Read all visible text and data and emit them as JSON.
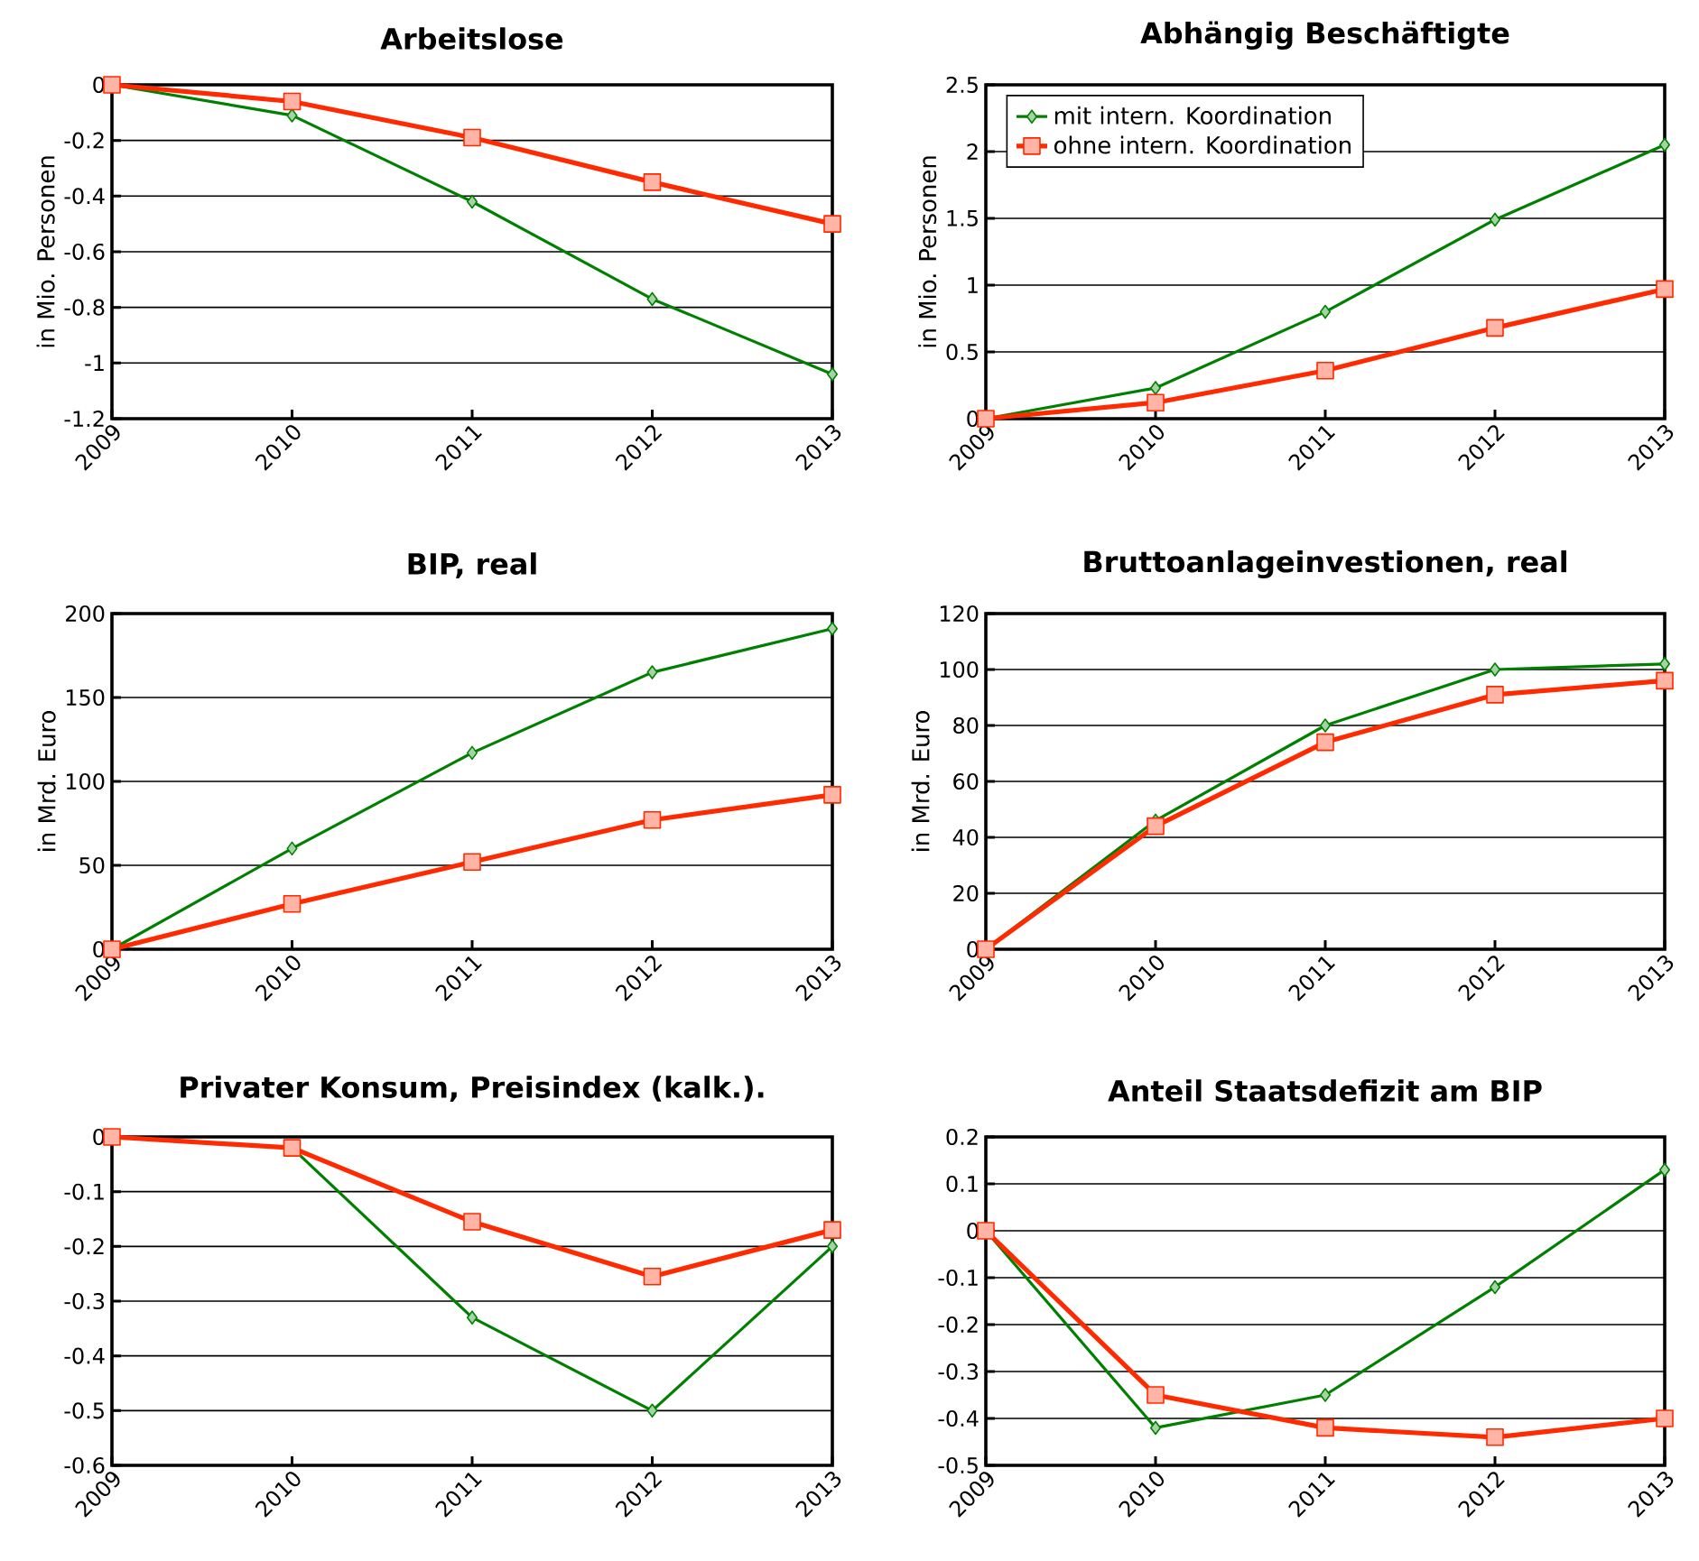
{
  "chart_data": [
    {
      "type": "line",
      "title": "Arbeitslose",
      "ylabel": "in Mio. Personen",
      "categories": [
        "2009",
        "2010",
        "2011",
        "2012",
        "2013"
      ],
      "ylim": [
        -1.2,
        0
      ],
      "yticks": [
        -1.2,
        -1,
        -0.8,
        -0.6,
        -0.4,
        -0.2,
        0
      ],
      "grid": "y",
      "legend": false,
      "series": [
        {
          "color": "#008000",
          "marker": "diamond",
          "values": [
            0,
            -0.11,
            -0.42,
            -0.77,
            -1.04
          ]
        },
        {
          "color": "#ff2a00",
          "marker": "square",
          "values": [
            0,
            -0.06,
            -0.19,
            -0.35,
            -0.5
          ]
        }
      ]
    },
    {
      "type": "line",
      "title": "Abhängig Beschäftigte",
      "ylabel": "in Mio. Personen",
      "categories": [
        "2009",
        "2010",
        "2011",
        "2012",
        "2013"
      ],
      "ylim": [
        0,
        2.5
      ],
      "yticks": [
        0,
        0.5,
        1,
        1.5,
        2,
        2.5
      ],
      "grid": "y",
      "legend": "top left",
      "series": [
        {
          "name": "mit intern. Koordination",
          "color": "#008000",
          "marker": "diamond",
          "values": [
            0,
            0.23,
            0.8,
            1.49,
            2.05
          ]
        },
        {
          "name": "ohne intern. Koordination",
          "color": "#ff2a00",
          "marker": "square",
          "values": [
            0,
            0.12,
            0.36,
            0.68,
            0.97
          ]
        }
      ]
    },
    {
      "type": "line",
      "title": "BIP, real",
      "ylabel": "in Mrd. Euro",
      "categories": [
        "2009",
        "2010",
        "2011",
        "2012",
        "2013"
      ],
      "ylim": [
        0,
        200
      ],
      "yticks": [
        0,
        50,
        100,
        150,
        200
      ],
      "grid": "y",
      "legend": false,
      "series": [
        {
          "color": "#008000",
          "marker": "diamond",
          "values": [
            0,
            60,
            117,
            165,
            191
          ]
        },
        {
          "color": "#ff2a00",
          "marker": "square",
          "values": [
            0,
            27,
            52,
            77,
            92
          ]
        }
      ]
    },
    {
      "type": "line",
      "title": "Bruttoanlageinvestionen, real",
      "ylabel": "in Mrd. Euro",
      "categories": [
        "2009",
        "2010",
        "2011",
        "2012",
        "2013"
      ],
      "ylim": [
        0,
        120
      ],
      "yticks": [
        0,
        20,
        40,
        60,
        80,
        100,
        120
      ],
      "grid": "y",
      "legend": false,
      "series": [
        {
          "color": "#008000",
          "marker": "diamond",
          "values": [
            0,
            46,
            80,
            100,
            102
          ]
        },
        {
          "color": "#ff2a00",
          "marker": "square",
          "values": [
            0,
            44,
            74,
            91,
            96
          ]
        }
      ]
    },
    {
      "type": "line",
      "title": "Privater Konsum, Preisindex (kalk.).",
      "categories": [
        "2009",
        "2010",
        "2011",
        "2012",
        "2013"
      ],
      "ylim": [
        -0.6,
        0
      ],
      "yticks": [
        -0.6,
        -0.5,
        -0.4,
        -0.3,
        -0.2,
        -0.1,
        0
      ],
      "grid": "y",
      "legend": false,
      "series": [
        {
          "color": "#008000",
          "marker": "diamond",
          "values": [
            0,
            -0.02,
            -0.33,
            -0.5,
            -0.2
          ]
        },
        {
          "color": "#ff2a00",
          "marker": "square",
          "values": [
            0,
            -0.02,
            -0.155,
            -0.255,
            -0.17
          ]
        }
      ]
    },
    {
      "type": "line",
      "title": "Anteil Staatsdefizit am BIP",
      "categories": [
        "2009",
        "2010",
        "2011",
        "2012",
        "2013"
      ],
      "ylim": [
        -0.5,
        0.2
      ],
      "yticks": [
        -0.5,
        -0.4,
        -0.3,
        -0.2,
        -0.1,
        0,
        0.1,
        0.2
      ],
      "grid": "y",
      "legend": false,
      "series": [
        {
          "color": "#008000",
          "marker": "diamond",
          "values": [
            0,
            -0.42,
            -0.35,
            -0.12,
            0.13
          ]
        },
        {
          "color": "#ff2a00",
          "marker": "square",
          "values": [
            0,
            -0.35,
            -0.42,
            -0.44,
            -0.4
          ]
        }
      ]
    }
  ]
}
